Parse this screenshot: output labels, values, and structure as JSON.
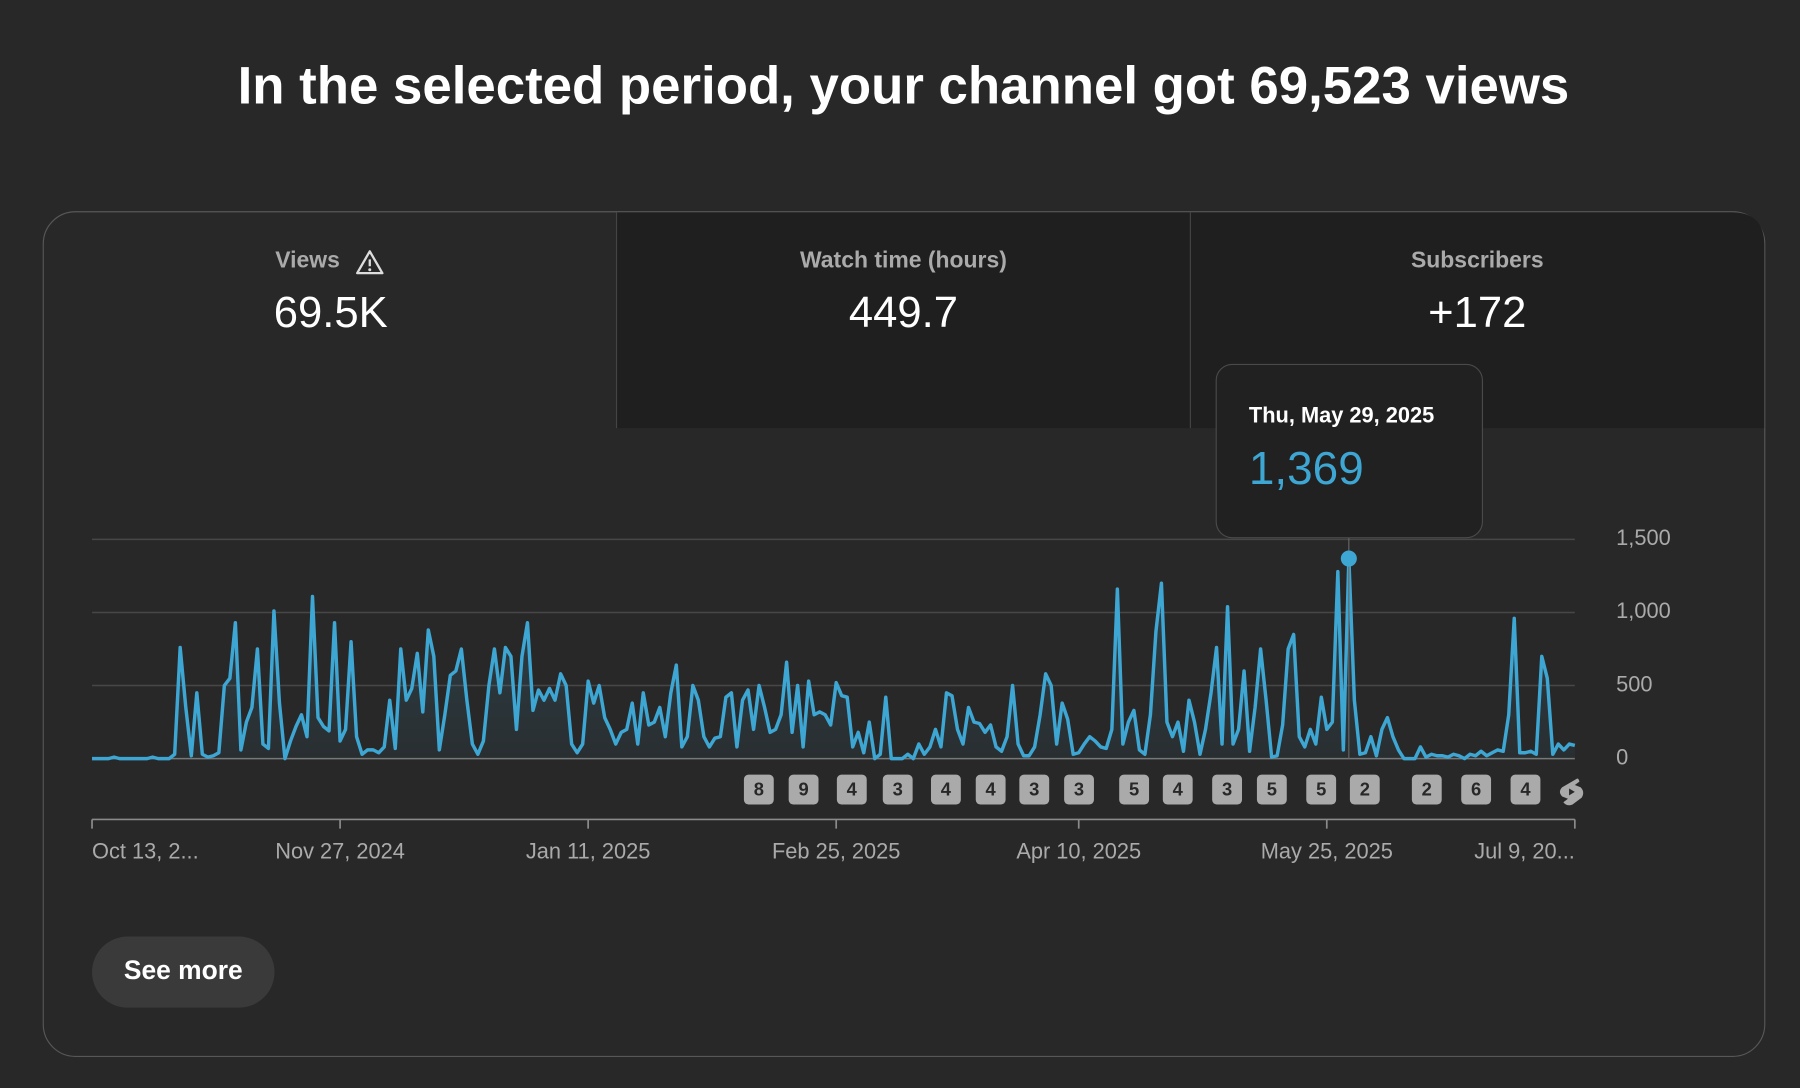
{
  "header": {
    "title": "In the selected period, your channel got 69,523 views"
  },
  "tabs": [
    {
      "label": "Views",
      "value": "69.5K"
    },
    {
      "label": "Watch time (hours)",
      "value": "449.7"
    },
    {
      "label": "Subscribers",
      "value": "+172"
    }
  ],
  "chart_data": {
    "type": "line",
    "categories": [
      "Oct 13, 2...",
      null,
      null,
      null,
      null,
      null,
      null,
      null,
      null,
      null,
      null,
      null,
      null,
      null,
      null,
      null,
      null,
      null,
      null,
      null,
      null,
      null,
      null,
      null,
      null,
      null,
      null,
      null,
      null,
      null,
      null,
      null,
      null,
      null,
      null,
      null,
      null,
      null,
      null,
      null,
      null,
      null,
      null,
      null,
      null,
      "Nov 27, 2024",
      null,
      null,
      null,
      null,
      null,
      null,
      null,
      null,
      null,
      null,
      null,
      null,
      null,
      null,
      null,
      null,
      null,
      null,
      null,
      null,
      null,
      null,
      null,
      null,
      null,
      null,
      null,
      null,
      null,
      null,
      null,
      null,
      null,
      null,
      null,
      null,
      null,
      null,
      null,
      null,
      null,
      null,
      null,
      null,
      "Jan 11, 2025",
      null,
      null,
      null,
      null,
      null,
      null,
      null,
      null,
      null,
      null,
      null,
      null,
      null,
      null,
      null,
      null,
      null,
      null,
      null,
      null,
      null,
      null,
      null,
      null,
      null,
      null,
      null,
      null,
      null,
      null,
      null,
      null,
      null,
      null,
      null,
      null,
      null,
      null,
      null,
      null,
      null,
      null,
      null,
      null,
      "Feb 25, 2025",
      null,
      null,
      null,
      null,
      null,
      null,
      null,
      null,
      null,
      null,
      null,
      null,
      null,
      null,
      null,
      null,
      null,
      null,
      null,
      null,
      null,
      null,
      null,
      null,
      null,
      null,
      null,
      null,
      null,
      null,
      null,
      null,
      null,
      null,
      null,
      null,
      null,
      null,
      null,
      null,
      null,
      null,
      null,
      "Apr 10, 2025",
      null,
      null,
      null,
      null,
      null,
      null,
      null,
      null,
      null,
      null,
      null,
      null,
      null,
      null,
      null,
      null,
      null,
      null,
      null,
      null,
      null,
      null,
      null,
      null,
      null,
      null,
      null,
      null,
      null,
      null,
      null,
      null,
      null,
      null,
      null,
      null,
      null,
      null,
      null,
      null,
      null,
      null,
      null,
      null,
      "May 25, 2025",
      null,
      null,
      null,
      null,
      null,
      null,
      null,
      null,
      null,
      null,
      null,
      null,
      null,
      null,
      null,
      null,
      null,
      null,
      null,
      null,
      null,
      null,
      null,
      null,
      null,
      null,
      null,
      null,
      null,
      null,
      null,
      null,
      null,
      null,
      null,
      null,
      null,
      null,
      null,
      null,
      null,
      null,
      null,
      null,
      "Jul 9, 20..."
    ],
    "series": [
      {
        "name": "Views",
        "color": "#3ea6d3",
        "values": [
          0,
          0,
          0,
          0,
          10,
          0,
          0,
          0,
          0,
          0,
          0,
          10,
          0,
          0,
          0,
          30,
          760,
          350,
          20,
          450,
          30,
          10,
          20,
          40,
          500,
          550,
          930,
          60,
          250,
          350,
          750,
          100,
          70,
          1010,
          380,
          0,
          120,
          220,
          300,
          150,
          1110,
          280,
          220,
          190,
          930,
          120,
          200,
          800,
          150,
          30,
          60,
          60,
          40,
          80,
          400,
          70,
          750,
          400,
          480,
          720,
          320,
          880,
          700,
          60,
          300,
          570,
          600,
          750,
          400,
          100,
          30,
          120,
          500,
          750,
          450,
          760,
          700,
          200,
          700,
          930,
          330,
          470,
          400,
          480,
          400,
          580,
          500,
          100,
          40,
          100,
          530,
          380,
          500,
          280,
          200,
          100,
          180,
          200,
          380,
          100,
          450,
          230,
          250,
          350,
          150,
          450,
          640,
          80,
          150,
          500,
          400,
          150,
          80,
          140,
          150,
          420,
          450,
          80,
          400,
          470,
          200,
          500,
          350,
          180,
          200,
          300,
          660,
          180,
          500,
          80,
          530,
          300,
          320,
          300,
          230,
          520,
          430,
          420,
          80,
          180,
          40,
          250,
          0,
          30,
          420,
          0,
          0,
          0,
          30,
          0,
          100,
          30,
          80,
          200,
          80,
          450,
          430,
          200,
          100,
          350,
          250,
          240,
          180,
          230,
          80,
          50,
          150,
          500,
          100,
          20,
          20,
          80,
          300,
          580,
          500,
          100,
          380,
          270,
          30,
          40,
          100,
          150,
          120,
          80,
          70,
          200,
          1160,
          100,
          250,
          330,
          60,
          30,
          300,
          870,
          1200,
          250,
          150,
          250,
          50,
          400,
          250,
          30,
          200,
          450,
          760,
          100,
          1040,
          100,
          200,
          600,
          50,
          350,
          750,
          400,
          10,
          20,
          230,
          750,
          850,
          150,
          80,
          200,
          100,
          420,
          200,
          250,
          1280,
          60,
          1369,
          400,
          30,
          40,
          150,
          20,
          200,
          280,
          150,
          60,
          0,
          0,
          0,
          80,
          10,
          30,
          20,
          20,
          10,
          30,
          20,
          0,
          30,
          20,
          50,
          20,
          40,
          60,
          50,
          300,
          960,
          40,
          40,
          50,
          30,
          700,
          550,
          30,
          100,
          60,
          100,
          90
        ]
      }
    ],
    "ylim": [
      0,
      1500
    ],
    "yticks": [
      0,
      500,
      {
        "value": 1000,
        "label": "1,000"
      },
      {
        "value": 1500,
        "label": "1,500"
      }
    ],
    "grid": true,
    "tooltip": {
      "date": "Thu, May 29, 2025",
      "value": "1,369",
      "index": 228
    },
    "upload_counts": [
      8,
      9,
      4,
      3,
      4,
      4,
      3,
      3,
      5,
      4,
      3,
      5,
      5,
      2,
      2,
      6,
      4
    ]
  },
  "button": {
    "label": "See more"
  }
}
